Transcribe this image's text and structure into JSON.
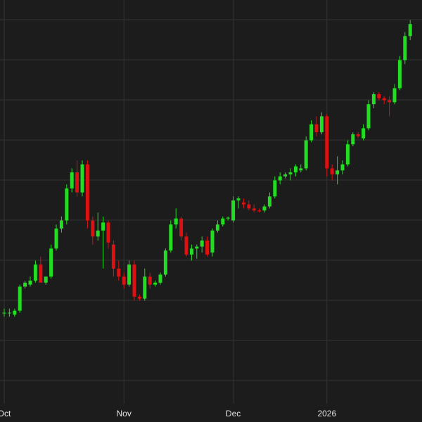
{
  "chart_data": {
    "type": "candlestick",
    "x_tick_labels": [
      "Oct",
      "Nov",
      "Dec",
      "2026"
    ],
    "grid": true,
    "colors": {
      "background": "#1c1c1c",
      "grid": "#333333",
      "up": "#22dd22",
      "down": "#dd1111",
      "text": "#e6e6e6"
    },
    "candles": [
      {
        "o": 22.0,
        "h": 23.0,
        "l": 21.0,
        "c": 22.0,
        "tick": "Oct"
      },
      {
        "o": 22.0,
        "h": 23.0,
        "l": 21.0,
        "c": 22.0
      },
      {
        "o": 21.5,
        "h": 23.0,
        "l": 21.0,
        "c": 22.5
      },
      {
        "o": 22.5,
        "h": 29.0,
        "l": 22.0,
        "c": 28.5
      },
      {
        "o": 28.5,
        "h": 30.0,
        "l": 28.0,
        "c": 29.5
      },
      {
        "o": 29.0,
        "h": 31.0,
        "l": 28.5,
        "c": 30.0
      },
      {
        "o": 30.0,
        "h": 35.0,
        "l": 29.5,
        "c": 34.0
      },
      {
        "o": 34.0,
        "h": 36.0,
        "l": 30.0,
        "c": 29.5
      },
      {
        "o": 29.5,
        "h": 31.0,
        "l": 29.0,
        "c": 31.0
      },
      {
        "o": 31.0,
        "h": 39.0,
        "l": 30.5,
        "c": 38.0
      },
      {
        "o": 38.0,
        "h": 44.0,
        "l": 37.5,
        "c": 43.0
      },
      {
        "o": 43.0,
        "h": 46.0,
        "l": 42.0,
        "c": 45.0
      },
      {
        "o": 45.0,
        "h": 54.0,
        "l": 44.0,
        "c": 53.0
      },
      {
        "o": 53.0,
        "h": 58.0,
        "l": 52.0,
        "c": 57.0
      },
      {
        "o": 57.0,
        "h": 60.0,
        "l": 51.0,
        "c": 52.0
      },
      {
        "o": 52.0,
        "h": 60.0,
        "l": 51.0,
        "c": 59.0
      },
      {
        "o": 59.0,
        "h": 60.0,
        "l": 43.0,
        "c": 45.0
      },
      {
        "o": 45.0,
        "h": 46.0,
        "l": 39.0,
        "c": 41.0
      },
      {
        "o": 41.0,
        "h": 47.0,
        "l": 40.0,
        "c": 42.5
      },
      {
        "o": 42.5,
        "h": 46.0,
        "l": 33.0,
        "c": 44.5
      },
      {
        "o": 44.5,
        "h": 45.0,
        "l": 38.0,
        "c": 39.5
      },
      {
        "o": 39.0,
        "h": 40.0,
        "l": 31.0,
        "c": 33.0
      },
      {
        "o": 33.0,
        "h": 35.0,
        "l": 30.0,
        "c": 31.0
      },
      {
        "o": 31.0,
        "h": 32.0,
        "l": 28.0,
        "c": 29.0,
        "tick": "Nov"
      },
      {
        "o": 29.0,
        "h": 35.0,
        "l": 28.5,
        "c": 34.0
      },
      {
        "o": 34.0,
        "h": 35.0,
        "l": 25.0,
        "c": 26.0
      },
      {
        "o": 26.0,
        "h": 26.5,
        "l": 25.0,
        "c": 25.5
      },
      {
        "o": 25.5,
        "h": 33.0,
        "l": 25.0,
        "c": 31.0
      },
      {
        "o": 31.0,
        "h": 32.0,
        "l": 28.0,
        "c": 29.0
      },
      {
        "o": 29.0,
        "h": 30.0,
        "l": 28.5,
        "c": 29.5
      },
      {
        "o": 29.5,
        "h": 32.0,
        "l": 29.0,
        "c": 31.5
      },
      {
        "o": 31.5,
        "h": 38.0,
        "l": 31.0,
        "c": 37.5
      },
      {
        "o": 37.5,
        "h": 45.0,
        "l": 37.0,
        "c": 44.0
      },
      {
        "o": 44.0,
        "h": 48.0,
        "l": 43.0,
        "c": 45.5
      },
      {
        "o": 45.5,
        "h": 46.0,
        "l": 40.0,
        "c": 41.0
      },
      {
        "o": 41.0,
        "h": 42.0,
        "l": 36.0,
        "c": 36.5
      },
      {
        "o": 36.5,
        "h": 39.0,
        "l": 35.0,
        "c": 38.0
      },
      {
        "o": 38.0,
        "h": 39.0,
        "l": 35.5,
        "c": 38.5
      },
      {
        "o": 38.5,
        "h": 41.0,
        "l": 37.0,
        "c": 40.0
      },
      {
        "o": 40.0,
        "h": 41.0,
        "l": 36.0,
        "c": 36.5
      },
      {
        "o": 37.0,
        "h": 43.0,
        "l": 36.0,
        "c": 42.5
      },
      {
        "o": 42.5,
        "h": 45.0,
        "l": 42.0,
        "c": 44.0
      },
      {
        "o": 44.0,
        "h": 46.0,
        "l": 43.5,
        "c": 45.5
      },
      {
        "o": 45.5,
        "h": 46.0,
        "l": 45.0,
        "c": 45.7
      },
      {
        "o": 45.0,
        "h": 51.0,
        "l": 44.5,
        "c": 50.0,
        "tick": "Dec"
      },
      {
        "o": 50.0,
        "h": 51.0,
        "l": 48.0,
        "c": 50.5
      },
      {
        "o": 49.5,
        "h": 50.5,
        "l": 48.0,
        "c": 49.0
      },
      {
        "o": 49.0,
        "h": 50.0,
        "l": 47.5,
        "c": 48.0
      },
      {
        "o": 48.0,
        "h": 49.0,
        "l": 47.0,
        "c": 47.5
      },
      {
        "o": 47.5,
        "h": 48.0,
        "l": 47.0,
        "c": 47.3
      },
      {
        "o": 47.5,
        "h": 49.0,
        "l": 47.0,
        "c": 48.5
      },
      {
        "o": 48.5,
        "h": 52.0,
        "l": 48.0,
        "c": 51.0
      },
      {
        "o": 51.0,
        "h": 56.0,
        "l": 50.5,
        "c": 55.0
      },
      {
        "o": 55.0,
        "h": 57.0,
        "l": 54.0,
        "c": 56.0
      },
      {
        "o": 56.0,
        "h": 57.0,
        "l": 55.5,
        "c": 56.5
      },
      {
        "o": 56.5,
        "h": 58.0,
        "l": 55.0,
        "c": 57.0
      },
      {
        "o": 57.0,
        "h": 59.0,
        "l": 56.0,
        "c": 58.5
      },
      {
        "o": 57.5,
        "h": 59.0,
        "l": 57.0,
        "c": 58.0
      },
      {
        "o": 58.0,
        "h": 66.0,
        "l": 57.5,
        "c": 65.0
      },
      {
        "o": 65.0,
        "h": 70.0,
        "l": 64.5,
        "c": 69.0
      },
      {
        "o": 69.0,
        "h": 71.0,
        "l": 66.0,
        "c": 67.0
      },
      {
        "o": 67.0,
        "h": 72.0,
        "l": 66.5,
        "c": 71.0
      },
      {
        "o": 71.0,
        "h": 71.5,
        "l": 56.0,
        "c": 58.0,
        "tick": "2026"
      },
      {
        "o": 58.0,
        "h": 59.0,
        "l": 55.0,
        "c": 56.5
      },
      {
        "o": 56.5,
        "h": 61.0,
        "l": 54.0,
        "c": 57.5
      },
      {
        "o": 57.5,
        "h": 60.0,
        "l": 56.5,
        "c": 59.0
      },
      {
        "o": 59.0,
        "h": 65.0,
        "l": 58.5,
        "c": 64.0
      },
      {
        "o": 64.0,
        "h": 67.0,
        "l": 63.5,
        "c": 66.5
      },
      {
        "o": 66.5,
        "h": 67.0,
        "l": 65.5,
        "c": 66.0
      },
      {
        "o": 65.5,
        "h": 69.0,
        "l": 65.0,
        "c": 68.0
      },
      {
        "o": 68.0,
        "h": 75.0,
        "l": 67.5,
        "c": 74.0
      },
      {
        "o": 74.0,
        "h": 77.0,
        "l": 73.0,
        "c": 76.5
      },
      {
        "o": 76.5,
        "h": 77.0,
        "l": 75.0,
        "c": 75.5
      },
      {
        "o": 75.5,
        "h": 76.0,
        "l": 74.0,
        "c": 75.0
      },
      {
        "o": 75.0,
        "h": 76.0,
        "l": 71.0,
        "c": 74.5
      },
      {
        "o": 74.5,
        "h": 79.0,
        "l": 74.0,
        "c": 78.0
      },
      {
        "o": 78.0,
        "h": 86.0,
        "l": 77.5,
        "c": 85.0
      },
      {
        "o": 85.0,
        "h": 92.0,
        "l": 84.0,
        "c": 91.0
      },
      {
        "o": 91.0,
        "h": 95.0,
        "l": 90.0,
        "c": 94.0
      }
    ]
  }
}
